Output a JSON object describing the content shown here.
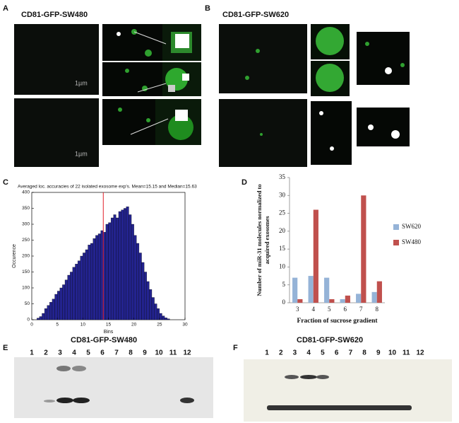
{
  "panels": {
    "A": {
      "letter": "A",
      "title": "CD81-GFP-SW480",
      "scale_labels": [
        "1µm",
        "1µm"
      ]
    },
    "B": {
      "letter": "B",
      "title": "CD81-GFP-SW620"
    },
    "C": {
      "letter": "C"
    },
    "D": {
      "letter": "D"
    },
    "E": {
      "letter": "E",
      "title": "CD81-GFP-SW480",
      "lanes": [
        "1",
        "2",
        "3",
        "4",
        "5",
        "6",
        "7",
        "8",
        "9",
        "10",
        "11",
        "12"
      ]
    },
    "F": {
      "letter": "F",
      "title": "CD81-GFP-SW620",
      "lanes": [
        "1",
        "2",
        "3",
        "4",
        "5",
        "6",
        "7",
        "8",
        "9",
        "10",
        "11",
        "12"
      ]
    }
  },
  "chart_data": [
    {
      "type": "histogram",
      "title": "Averaged loc. accuracies of 22 isolated exosome exp's. Mean=15.15 and Median=15.63",
      "xlabel": "Bins",
      "ylabel": "Occurence",
      "bins": [
        1,
        1.5,
        2,
        2.5,
        3,
        3.5,
        4,
        4.5,
        5,
        5.5,
        6,
        6.5,
        7,
        7.5,
        8,
        8.5,
        9,
        9.5,
        10,
        10.5,
        11,
        11.5,
        12,
        12.5,
        13,
        13.5,
        14,
        14.5,
        15,
        15.5,
        16,
        16.5,
        17,
        17.5,
        18,
        18.5,
        19,
        19.5,
        20,
        20.5,
        21,
        21.5,
        22,
        22.5,
        23,
        23.5,
        24,
        24.5,
        25,
        25.5,
        26,
        26.5,
        27
      ],
      "values": [
        5,
        10,
        20,
        35,
        45,
        55,
        65,
        80,
        90,
        100,
        110,
        125,
        140,
        150,
        165,
        175,
        185,
        200,
        210,
        220,
        235,
        240,
        255,
        265,
        270,
        280,
        275,
        300,
        305,
        320,
        330,
        320,
        340,
        345,
        350,
        355,
        330,
        300,
        265,
        240,
        210,
        180,
        150,
        120,
        95,
        70,
        50,
        35,
        20,
        12,
        6,
        3
      ],
      "color": "#23238f",
      "vline": 14,
      "vline_color": "#e0202a",
      "xlim": [
        0,
        30
      ],
      "xticks": [
        0,
        5,
        10,
        15,
        20,
        25,
        30
      ],
      "ylim": [
        0,
        400
      ],
      "yticks": [
        0,
        50,
        100,
        150,
        200,
        250,
        300,
        350,
        400
      ]
    },
    {
      "type": "bar",
      "xlabel": "Fraction of sucrose gradient",
      "ylabel": [
        "Number of miR-31 molecules normalized to",
        "acquired exosomes"
      ],
      "categories": [
        "3",
        "4",
        "5",
        "6",
        "7",
        "8"
      ],
      "series": [
        {
          "name": "SW620",
          "color": "#95b3d7",
          "values": [
            7,
            7.5,
            7,
            1,
            2.5,
            3
          ]
        },
        {
          "name": "SW480",
          "color": "#c0504d",
          "values": [
            1,
            26,
            1,
            2,
            30,
            6
          ]
        }
      ],
      "ylim": [
        0,
        35
      ],
      "yticks": [
        0,
        5,
        10,
        15,
        20,
        25,
        30,
        35
      ],
      "legend": "right"
    }
  ]
}
